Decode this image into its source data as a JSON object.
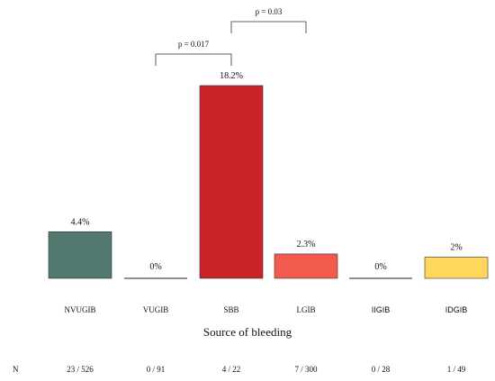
{
  "chart_data": {
    "type": "bar",
    "categories": [
      "NVUGIB",
      "VUGIB",
      "SBB",
      "LGIB",
      "IIGIB",
      "IDGIB"
    ],
    "values": [
      4.4,
      0,
      18.2,
      2.3,
      0,
      2
    ],
    "value_labels": [
      "4.4%",
      "0%",
      "18.2%",
      "2.3%",
      "0%",
      "2%"
    ],
    "colors": [
      "#52786f",
      "#6e6e6e",
      "#cb2129",
      "#f15a4d",
      "#6e6e6e",
      "#ffd75c"
    ],
    "xlabel": "Source of bleeding",
    "ylabel": "",
    "ylim": [
      0,
      18.2
    ],
    "grid": false,
    "counts_row_label": "N",
    "counts": [
      "23 / 526",
      "0 / 91",
      "4 / 22",
      "7 / 300",
      "0 / 28",
      "1 / 49"
    ],
    "comparisons": [
      {
        "from": "VUGIB",
        "to": "SBB",
        "label": "p = 0.017"
      },
      {
        "from": "SBB",
        "to": "LGIB",
        "label": "p = 0.03"
      }
    ]
  }
}
